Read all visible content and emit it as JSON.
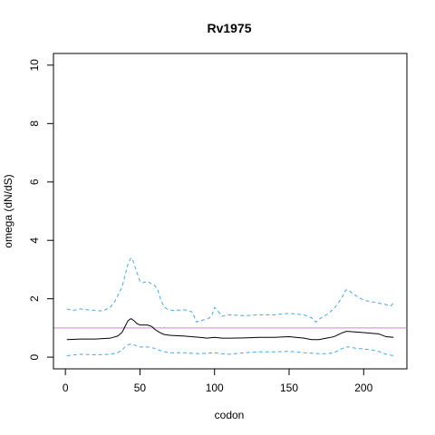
{
  "chart_data": {
    "type": "line",
    "title": "Rv1975",
    "xlabel": "codon",
    "ylabel": "omega (dN/dS)",
    "xlim": [
      -8,
      229
    ],
    "ylim": [
      -0.4,
      10.4
    ],
    "xticks": [
      0,
      50,
      100,
      150,
      200
    ],
    "yticks": [
      0,
      2,
      4,
      6,
      8,
      10
    ],
    "grid": false,
    "legend": "none",
    "reference_line": {
      "y": 1,
      "color": "#cc88cc"
    },
    "series": [
      {
        "style": "solid",
        "color": "#000000",
        "x": [
          1,
          10,
          20,
          30,
          35,
          38,
          40,
          42,
          44,
          46,
          48,
          50,
          55,
          58,
          60,
          63,
          66,
          70,
          80,
          90,
          95,
          100,
          105,
          110,
          120,
          130,
          140,
          150,
          160,
          165,
          170,
          175,
          180,
          185,
          188,
          190,
          195,
          200,
          205,
          210,
          215,
          220
        ],
        "y": [
          0.6,
          0.62,
          0.62,
          0.65,
          0.72,
          0.85,
          1.05,
          1.25,
          1.32,
          1.25,
          1.15,
          1.1,
          1.1,
          1.05,
          0.95,
          0.85,
          0.78,
          0.75,
          0.72,
          0.68,
          0.65,
          0.68,
          0.65,
          0.65,
          0.66,
          0.68,
          0.68,
          0.7,
          0.65,
          0.6,
          0.6,
          0.65,
          0.7,
          0.82,
          0.88,
          0.88,
          0.86,
          0.84,
          0.82,
          0.8,
          0.7,
          0.68
        ]
      },
      {
        "style": "dashed",
        "color": "#4aa8e0",
        "x": [
          1,
          5,
          10,
          15,
          20,
          25,
          30,
          33,
          36,
          38,
          40,
          42,
          44,
          45,
          46,
          48,
          50,
          52,
          55,
          58,
          60,
          62,
          64,
          66,
          68,
          72,
          80,
          85,
          88,
          90,
          95,
          98,
          100,
          102,
          105,
          110,
          120,
          130,
          140,
          150,
          160,
          165,
          168,
          170,
          175,
          180,
          185,
          188,
          190,
          192,
          195,
          200,
          205,
          210,
          215,
          218,
          221
        ],
        "y": [
          1.65,
          1.6,
          1.65,
          1.62,
          1.6,
          1.58,
          1.7,
          1.9,
          2.2,
          2.4,
          2.8,
          3.2,
          3.4,
          3.35,
          3.2,
          2.9,
          2.6,
          2.55,
          2.6,
          2.5,
          2.45,
          2.3,
          1.95,
          1.75,
          1.65,
          1.6,
          1.62,
          1.55,
          1.2,
          1.25,
          1.3,
          1.4,
          1.7,
          1.6,
          1.4,
          1.45,
          1.42,
          1.45,
          1.45,
          1.5,
          1.45,
          1.35,
          1.2,
          1.3,
          1.45,
          1.65,
          2.0,
          2.3,
          2.3,
          2.2,
          2.1,
          1.95,
          1.9,
          1.85,
          1.8,
          1.75,
          1.9
        ]
      },
      {
        "style": "dashed",
        "color": "#4aa8e0",
        "x": [
          1,
          10,
          20,
          30,
          35,
          38,
          40,
          42,
          44,
          46,
          50,
          55,
          60,
          65,
          70,
          80,
          90,
          100,
          105,
          110,
          120,
          130,
          140,
          150,
          160,
          170,
          175,
          180,
          185,
          188,
          190,
          195,
          200,
          205,
          210,
          215,
          220
        ],
        "y": [
          0.05,
          0.1,
          0.08,
          0.1,
          0.15,
          0.25,
          0.35,
          0.42,
          0.45,
          0.42,
          0.35,
          0.35,
          0.3,
          0.2,
          0.15,
          0.15,
          0.12,
          0.15,
          0.12,
          0.1,
          0.15,
          0.18,
          0.18,
          0.2,
          0.15,
          0.12,
          0.12,
          0.15,
          0.28,
          0.35,
          0.35,
          0.3,
          0.28,
          0.25,
          0.2,
          0.1,
          0.05
        ]
      }
    ]
  }
}
